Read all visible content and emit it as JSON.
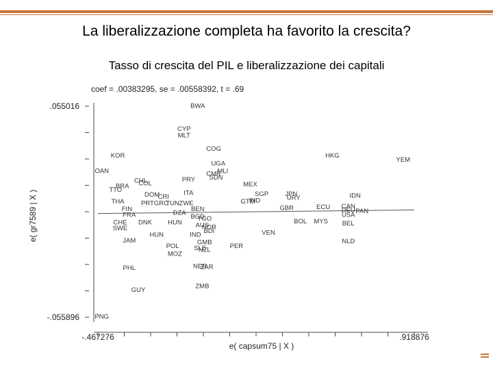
{
  "slide": {
    "title": "La liberalizzazione completa ha favorito la crescita?",
    "subtitle": "Tasso di  crescita del PIL e liberalizzazione dei capitali",
    "accent_color": "#c8743a"
  },
  "chart_data": {
    "type": "scatter",
    "title": "coef = .00383295, se = .00558392, t = .69",
    "xlabel": "e( capsum75 | X )",
    "ylabel": "e( gr7589 | X )",
    "xlim": [
      -0.467276,
      0.918876
    ],
    "ylim": [
      -0.055896,
      0.055016
    ],
    "x_tick_labels": [
      "-.467276",
      ".918876"
    ],
    "y_tick_labels": [
      ".055016",
      "-.055896"
    ],
    "fit_line": {
      "x": [
        -0.467276,
        0.918876
      ],
      "y": [
        -0.0014,
        0.0005
      ]
    },
    "points": [
      {
        "label": "BWA",
        "x": -0.03,
        "y": 0.0552
      },
      {
        "label": "CYP",
        "x": -0.09,
        "y": 0.0432
      },
      {
        "label": "MLT",
        "x": -0.09,
        "y": 0.0398
      },
      {
        "label": "COG",
        "x": 0.04,
        "y": 0.0326
      },
      {
        "label": "KOR",
        "x": -0.38,
        "y": 0.029
      },
      {
        "label": "HKG",
        "x": 0.56,
        "y": 0.029
      },
      {
        "label": "YEM",
        "x": 0.87,
        "y": 0.027
      },
      {
        "label": "UGA",
        "x": 0.06,
        "y": 0.025
      },
      {
        "label": "OAN",
        "x": -0.45,
        "y": 0.021
      },
      {
        "label": "MLI",
        "x": 0.08,
        "y": 0.021
      },
      {
        "label": "CMR",
        "x": 0.04,
        "y": 0.0195
      },
      {
        "label": "SDN",
        "x": 0.05,
        "y": 0.0175
      },
      {
        "label": "PRY",
        "x": -0.07,
        "y": 0.0165
      },
      {
        "label": "CHL",
        "x": -0.28,
        "y": 0.016
      },
      {
        "label": "COL",
        "x": -0.26,
        "y": 0.0145
      },
      {
        "label": "MEX",
        "x": 0.2,
        "y": 0.014
      },
      {
        "label": "BRA",
        "x": -0.36,
        "y": 0.013
      },
      {
        "label": "TTO",
        "x": -0.39,
        "y": 0.011
      },
      {
        "label": "DOM",
        "x": -0.23,
        "y": 0.0085
      },
      {
        "label": "CRI",
        "x": -0.18,
        "y": 0.0075
      },
      {
        "label": "ITA",
        "x": -0.07,
        "y": 0.0095
      },
      {
        "label": "SGP",
        "x": 0.25,
        "y": 0.009
      },
      {
        "label": "JPN",
        "x": 0.38,
        "y": 0.009
      },
      {
        "label": "URY",
        "x": 0.39,
        "y": 0.007
      },
      {
        "label": "IDN",
        "x": 0.66,
        "y": 0.008
      },
      {
        "label": "THA",
        "x": -0.38,
        "y": 0.005
      },
      {
        "label": "PRT",
        "x": -0.25,
        "y": 0.004
      },
      {
        "label": "GRC",
        "x": -0.19,
        "y": 0.004
      },
      {
        "label": "TUN",
        "x": -0.14,
        "y": 0.004
      },
      {
        "label": "ZWE",
        "x": -0.08,
        "y": 0.004
      },
      {
        "label": "GTM",
        "x": 0.19,
        "y": 0.005
      },
      {
        "label": "IND",
        "x": 0.22,
        "y": 0.0055
      },
      {
        "label": "FIN",
        "x": -0.34,
        "y": 0.001
      },
      {
        "label": "DZA",
        "x": -0.11,
        "y": -0.001
      },
      {
        "label": "BEN",
        "x": -0.03,
        "y": 0.001
      },
      {
        "label": "GBR",
        "x": 0.36,
        "y": 0.0015
      },
      {
        "label": "ECU",
        "x": 0.52,
        "y": 0.002
      },
      {
        "label": "CAN",
        "x": 0.63,
        "y": 0.0025
      },
      {
        "label": "DEU",
        "x": 0.63,
        "y": 0.0005
      },
      {
        "label": "PAN",
        "x": 0.69,
        "y": 0.0
      },
      {
        "label": "FRA",
        "x": -0.33,
        "y": -0.002
      },
      {
        "label": "BGD",
        "x": -0.03,
        "y": -0.003
      },
      {
        "label": "USA",
        "x": 0.63,
        "y": -0.002
      },
      {
        "label": "DNK",
        "x": -0.26,
        "y": -0.006
      },
      {
        "label": "HUN",
        "x": -0.13,
        "y": -0.006
      },
      {
        "label": "TGO",
        "x": 0.0,
        "y": -0.004
      },
      {
        "label": "BOL",
        "x": 0.42,
        "y": -0.0055
      },
      {
        "label": "MYS",
        "x": 0.51,
        "y": -0.0055
      },
      {
        "label": "BEL",
        "x": 0.63,
        "y": -0.0065
      },
      {
        "label": "CHE",
        "x": -0.37,
        "y": -0.006
      },
      {
        "label": "AUS",
        "x": -0.01,
        "y": -0.0075
      },
      {
        "label": "SWE",
        "x": -0.37,
        "y": -0.009
      },
      {
        "label": "NOR",
        "x": 0.02,
        "y": -0.0085
      },
      {
        "label": "BDI",
        "x": 0.02,
        "y": -0.0105
      },
      {
        "label": "VEN",
        "x": 0.28,
        "y": -0.0115
      },
      {
        "label": "JAM",
        "x": -0.33,
        "y": -0.0155
      },
      {
        "label": "HUN",
        "x": -0.21,
        "y": -0.0125
      },
      {
        "label": "IND",
        "x": -0.04,
        "y": -0.0125
      },
      {
        "label": "NLD",
        "x": 0.63,
        "y": -0.016
      },
      {
        "label": "GMB",
        "x": 0.0,
        "y": -0.0165
      },
      {
        "label": "POL",
        "x": -0.14,
        "y": -0.0185
      },
      {
        "label": "PER",
        "x": 0.14,
        "y": -0.0185
      },
      {
        "label": "SLE",
        "x": -0.02,
        "y": -0.0195
      },
      {
        "label": "NZL",
        "x": 0.0,
        "y": -0.0205
      },
      {
        "label": "MOZ",
        "x": -0.13,
        "y": -0.0225
      },
      {
        "label": "PHL",
        "x": -0.33,
        "y": -0.03
      },
      {
        "label": "NER",
        "x": -0.02,
        "y": -0.029
      },
      {
        "label": "ZAR",
        "x": 0.01,
        "y": -0.0295
      },
      {
        "label": "ZMB",
        "x": -0.01,
        "y": -0.0395
      },
      {
        "label": "GUY",
        "x": -0.29,
        "y": -0.0415
      },
      {
        "label": "PNG",
        "x": -0.45,
        "y": -0.0555
      }
    ]
  }
}
